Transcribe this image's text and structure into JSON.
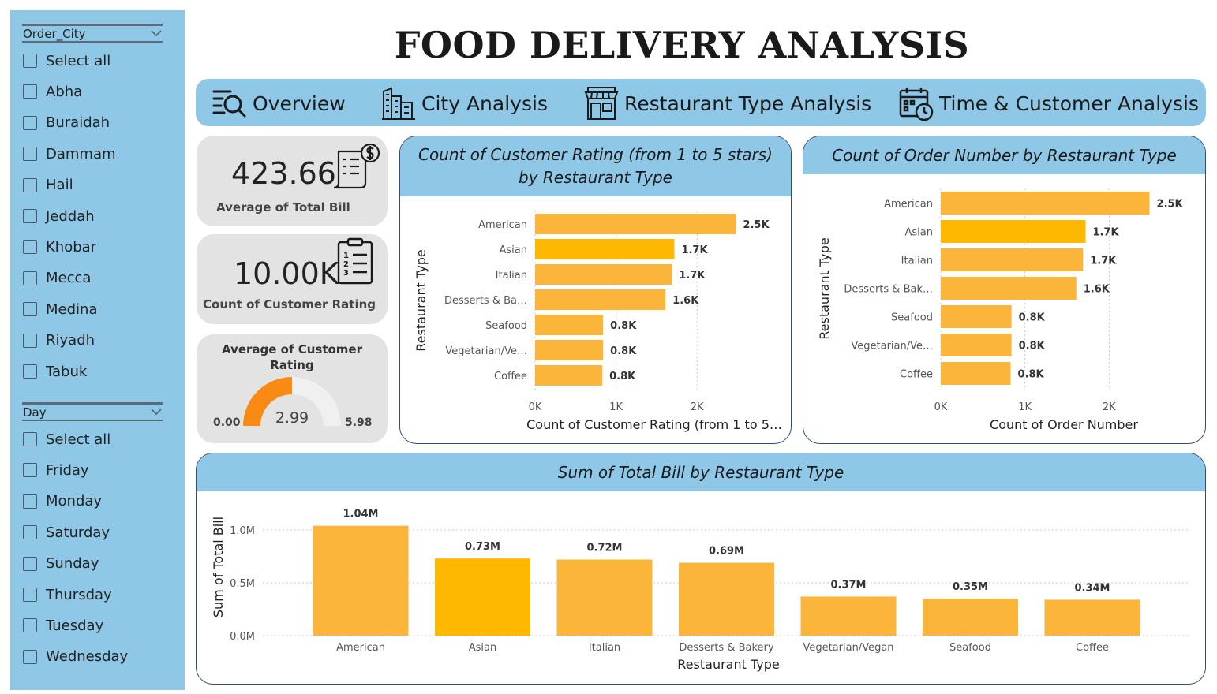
{
  "title": "FOOD DELIVERY ANALYSIS",
  "nav": [
    {
      "label": "Overview",
      "icon": "search-list-icon"
    },
    {
      "label": "City Analysis",
      "icon": "city-buildings-icon"
    },
    {
      "label": "Restaurant Type Analysis",
      "icon": "restaurant-store-icon"
    },
    {
      "label": "Time & Customer Analysis",
      "icon": "calendar-clock-icon"
    }
  ],
  "slicers": {
    "city": {
      "title": "Order_City",
      "items": [
        "Select all",
        "Abha",
        "Buraidah",
        "Dammam",
        "Hail",
        "Jeddah",
        "Khobar",
        "Mecca",
        "Medina",
        "Riyadh",
        "Tabuk"
      ]
    },
    "day": {
      "title": "Day",
      "items": [
        "Select all",
        "Friday",
        "Monday",
        "Saturday",
        "Sunday",
        "Thursday",
        "Tuesday",
        "Wednesday"
      ]
    }
  },
  "kpis": {
    "avg_bill": {
      "value": "423.66",
      "label": "Average of Total Bill"
    },
    "count_rating": {
      "value": "10.00K",
      "label": "Count of Customer Rating"
    },
    "avg_rating": {
      "label": "Average of Customer Rating",
      "value": "2.99",
      "min": "0.00",
      "max": "5.98",
      "gauge_value": 2.99,
      "gauge_min": 0,
      "gauge_max": 5.98
    }
  },
  "colors": {
    "bar": "#fbb53b",
    "bar_highlight": "#ffb800",
    "gauge_fill": "#f98a14",
    "gauge_track": "#f0f0f0",
    "header": "#8fc7e6"
  },
  "chart_data": [
    {
      "type": "bar",
      "orientation": "horizontal",
      "title": "Count of Customer Rating (from 1 to 5 stars) by Restaurant Type",
      "xlabel": "Count of Customer Rating (from 1 to 5…",
      "ylabel": "Restaurant Type",
      "categories": [
        "American",
        "Asian",
        "Italian",
        "Desserts & Ba…",
        "Seafood",
        "Vegetarian/Ve…",
        "Coffee"
      ],
      "values": [
        2480,
        1720,
        1690,
        1610,
        840,
        840,
        830
      ],
      "data_labels": [
        "2.5K",
        "1.7K",
        "1.7K",
        "1.6K",
        "0.8K",
        "0.8K",
        "0.8K"
      ],
      "xticks": [
        "0K",
        "1K",
        "2K"
      ],
      "xlim": [
        0,
        2700
      ],
      "grid": true
    },
    {
      "type": "bar",
      "orientation": "horizontal",
      "title": "Count of Order Number by Restaurant Type",
      "xlabel": "Count of Order Number",
      "ylabel": "Restaurant Type",
      "categories": [
        "American",
        "Asian",
        "Italian",
        "Desserts & Bak…",
        "Seafood",
        "Vegetarian/Ve…",
        "Coffee"
      ],
      "values": [
        2480,
        1720,
        1690,
        1610,
        840,
        840,
        830
      ],
      "data_labels": [
        "2.5K",
        "1.7K",
        "1.7K",
        "1.6K",
        "0.8K",
        "0.8K",
        "0.8K"
      ],
      "xticks": [
        "0K",
        "1K",
        "2K"
      ],
      "xlim": [
        0,
        2700
      ],
      "grid": true
    },
    {
      "type": "bar",
      "orientation": "vertical",
      "title": "Sum of Total Bill by Restaurant Type",
      "xlabel": "Restaurant Type",
      "ylabel": "Sum of Total Bill",
      "categories": [
        "American",
        "Asian",
        "Italian",
        "Desserts & Bakery",
        "Vegetarian/Vegan",
        "Seafood",
        "Coffee"
      ],
      "values": [
        1040000,
        730000,
        720000,
        690000,
        370000,
        350000,
        340000
      ],
      "data_labels": [
        "1.04M",
        "0.73M",
        "0.72M",
        "0.69M",
        "0.37M",
        "0.35M",
        "0.34M"
      ],
      "yticks": [
        "0.0M",
        "0.5M",
        "1.0M"
      ],
      "ylim": [
        0,
        1000000
      ],
      "grid": true
    }
  ]
}
